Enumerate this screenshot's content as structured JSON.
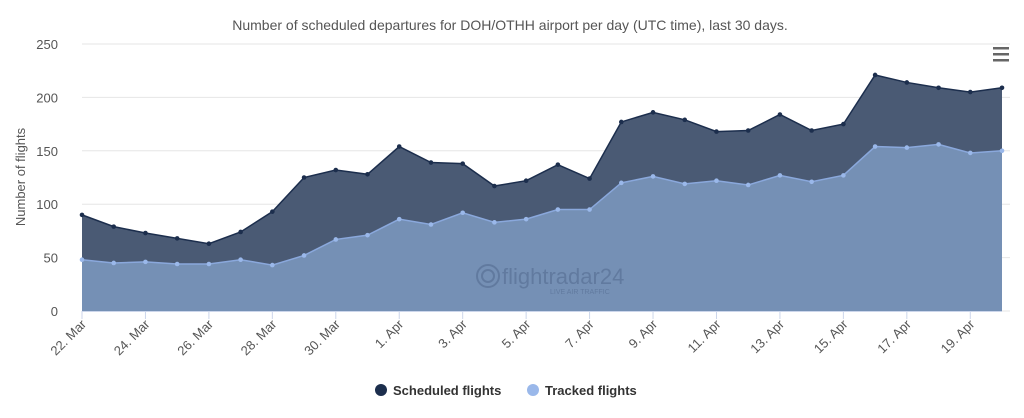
{
  "chart_data": {
    "type": "area",
    "title": "Number of scheduled departures for DOH/OTHH airport per day (UTC time), last 30 days.",
    "xlabel": "",
    "ylabel": "Number of flights",
    "ylim": [
      0,
      250
    ],
    "yticks": [
      0,
      50,
      100,
      150,
      200,
      250
    ],
    "grid": true,
    "legend_position": "bottom",
    "x": [
      "22. Mar",
      "23. Mar",
      "24. Mar",
      "25. Mar",
      "26. Mar",
      "27. Mar",
      "28. Mar",
      "29. Mar",
      "30. Mar",
      "31. Mar",
      "1. Apr",
      "2. Apr",
      "3. Apr",
      "4. Apr",
      "5. Apr",
      "6. Apr",
      "7. Apr",
      "8. Apr",
      "9. Apr",
      "10. Apr",
      "11. Apr",
      "12. Apr",
      "13. Apr",
      "14. Apr",
      "15. Apr",
      "16. Apr",
      "17. Apr",
      "18. Apr",
      "19. Apr",
      "20. Apr"
    ],
    "xtick_labels": [
      "22. Mar",
      "24. Mar",
      "26. Mar",
      "28. Mar",
      "30. Mar",
      "1. Apr",
      "3. Apr",
      "5. Apr",
      "7. Apr",
      "9. Apr",
      "11. Apr",
      "13. Apr",
      "15. Apr",
      "17. Apr",
      "19. Apr"
    ],
    "series": [
      {
        "name": "Scheduled flights",
        "color": "#1c2e4d",
        "values": [
          90,
          79,
          73,
          68,
          63,
          74,
          93,
          125,
          132,
          128,
          154,
          139,
          138,
          117,
          122,
          137,
          124,
          177,
          186,
          179,
          168,
          169,
          184,
          169,
          175,
          221,
          214,
          209,
          205,
          209
        ]
      },
      {
        "name": "Tracked flights",
        "color": "#9ab8ea",
        "values": [
          48,
          45,
          46,
          44,
          44,
          48,
          43,
          52,
          67,
          71,
          86,
          81,
          92,
          83,
          86,
          95,
          95,
          120,
          126,
          119,
          122,
          118,
          127,
          121,
          127,
          154,
          153,
          156,
          148,
          150
        ]
      }
    ]
  },
  "watermark": "flightradar24 LIVE AIR TRAFFIC",
  "menu_icon": "hamburger-menu-icon"
}
